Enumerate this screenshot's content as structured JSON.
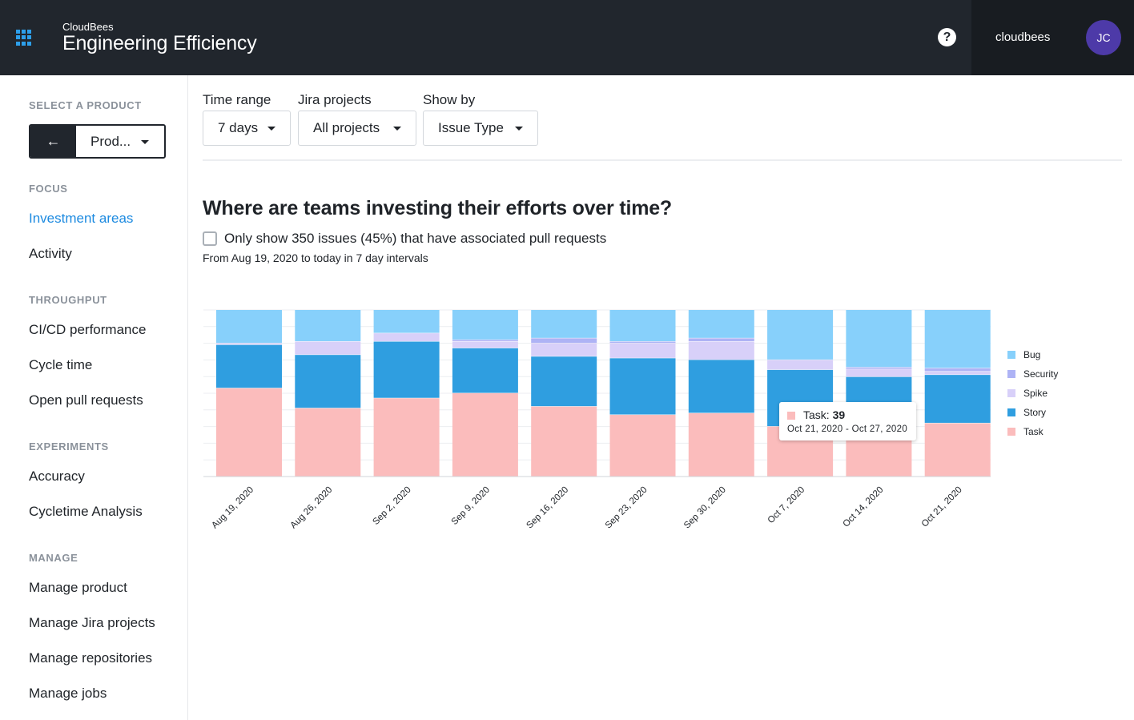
{
  "header": {
    "company": "CloudBees",
    "product": "Engineering Efficiency",
    "help_symbol": "?",
    "org_name": "cloudbees",
    "user_initials": "JC",
    "icons": [
      "apps-grid-icon",
      "help-icon"
    ]
  },
  "sidebar": {
    "select_product_heading": "SELECT A PRODUCT",
    "back_symbol": "←",
    "product_value": "Prod...",
    "sections": [
      {
        "title": "FOCUS",
        "items": [
          "Investment areas",
          "Activity"
        ]
      },
      {
        "title": "THROUGHPUT",
        "items": [
          "CI/CD performance",
          "Cycle time",
          "Open pull requests"
        ]
      },
      {
        "title": "EXPERIMENTS",
        "items": [
          "Accuracy",
          "Cycletime Analysis"
        ]
      },
      {
        "title": "MANAGE",
        "items": [
          "Manage product",
          "Manage Jira projects",
          "Manage repositories",
          "Manage jobs"
        ]
      }
    ],
    "active_item": "Investment areas"
  },
  "filters": {
    "time_range": {
      "label": "Time range",
      "value": "7 days"
    },
    "jira_projects": {
      "label": "Jira projects",
      "value": "All projects"
    },
    "show_by": {
      "label": "Show by",
      "value": "Issue Type"
    }
  },
  "main": {
    "heading": "Where are teams investing their efforts over time?",
    "checkbox_label": "Only show 350 issues (45%) that have associated pull requests",
    "subtext": "From Aug 19, 2020 to today in 7 day intervals"
  },
  "tooltip": {
    "series": "Task",
    "value": "39",
    "range": "Oct 21, 2020 - Oct 27, 2020"
  },
  "colors": {
    "Bug": "#87d0fb",
    "Security": "#aeb3f5",
    "Spike": "#d8d0f9",
    "Story": "#2f9ee0",
    "Task": "#fbbcbc"
  },
  "chart_data": {
    "type": "bar",
    "stacked": "percent",
    "title": "Where are teams investing their efforts over time?",
    "categories": [
      "Aug 19, 2020",
      "Aug 26, 2020",
      "Sep 2, 2020",
      "Sep 9, 2020",
      "Sep 16, 2020",
      "Sep 23, 2020",
      "Sep 30, 2020",
      "Oct 7, 2020",
      "Oct 14, 2020",
      "Oct 21, 2020"
    ],
    "series": [
      {
        "name": "Task",
        "values": [
          53,
          41,
          47,
          50,
          42,
          37,
          38,
          30,
          32,
          32
        ]
      },
      {
        "name": "Story",
        "values": [
          26,
          32,
          34,
          27,
          30,
          34,
          32,
          34,
          20,
          29
        ]
      },
      {
        "name": "Spike",
        "values": [
          1,
          8,
          5,
          4,
          8,
          9,
          11,
          6,
          4,
          2
        ]
      },
      {
        "name": "Security",
        "values": [
          0,
          0,
          0,
          1,
          3,
          1,
          2,
          0,
          1,
          2
        ]
      },
      {
        "name": "Bug",
        "values": [
          20,
          19,
          14,
          18,
          17,
          19,
          17,
          30,
          30,
          35
        ]
      }
    ],
    "legend_order": [
      "Bug",
      "Security",
      "Spike",
      "Story",
      "Task"
    ],
    "legend_position": "right",
    "ylim": [
      0,
      100
    ],
    "grid": true,
    "xlabel": "",
    "ylabel": ""
  }
}
